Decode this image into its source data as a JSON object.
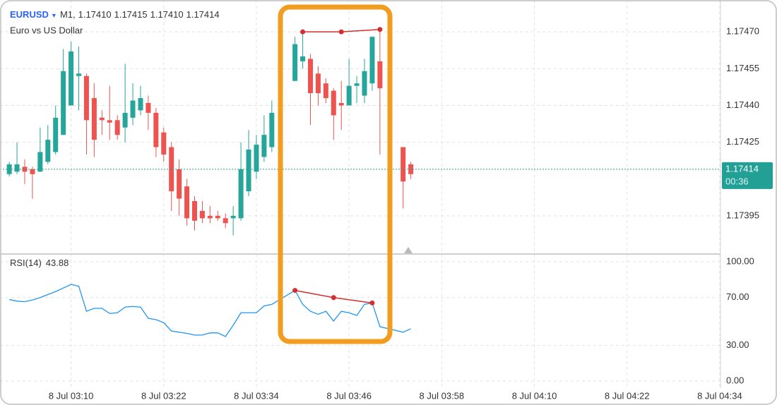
{
  "header": {
    "symbol": "EURUSD",
    "timeframe": "M1,",
    "ohlc": [
      "1.17410",
      "1.17415",
      "1.17410",
      "1.17414"
    ],
    "description": "Euro vs US Dollar"
  },
  "chart_data": [
    {
      "type": "candlestick",
      "x": [
        2,
        3,
        4,
        5,
        6,
        7,
        8,
        9,
        10,
        11,
        12,
        13,
        14,
        15,
        16,
        17,
        18,
        19,
        20,
        21,
        22,
        23,
        24,
        25,
        26,
        27,
        28,
        29,
        30,
        31,
        32,
        33,
        34,
        35,
        36,
        39,
        40,
        41,
        42,
        43,
        44,
        45,
        46,
        47,
        48,
        49,
        50,
        53,
        54
      ],
      "open": [
        1.17412,
        1.17413,
        1.17415,
        1.17414,
        1.17413,
        1.17417,
        1.17421,
        1.17428,
        1.1744,
        1.17452,
        1.17452,
        1.17443,
        1.17435,
        1.17434,
        1.17434,
        1.17431,
        1.17435,
        1.17438,
        1.17441,
        1.17437,
        1.17429,
        1.17423,
        1.17414,
        1.17407,
        1.17401,
        1.17397,
        1.17395,
        1.17395,
        1.17394,
        1.17394,
        1.17394,
        1.17405,
        1.17413,
        1.17419,
        1.17423,
        1.1745,
        1.17458,
        1.17459,
        1.17453,
        1.17449,
        1.17446,
        1.17441,
        1.1744,
        1.17448,
        1.17444,
        1.17449,
        1.17458,
        1.17423,
        1.17416
      ],
      "high": [
        1.17417,
        1.17425,
        1.17418,
        1.17415,
        1.17431,
        1.17432,
        1.1744,
        1.17463,
        1.17466,
        1.17464,
        1.17453,
        1.17449,
        1.17438,
        1.17448,
        1.17436,
        1.17457,
        1.17449,
        1.17448,
        1.17444,
        1.17439,
        1.17431,
        1.17425,
        1.17418,
        1.1741,
        1.17403,
        1.17401,
        1.17399,
        1.17397,
        1.17396,
        1.17399,
        1.17425,
        1.1743,
        1.17428,
        1.17436,
        1.17442,
        1.17468,
        1.1747,
        1.17461,
        1.17456,
        1.17451,
        1.17447,
        1.1745,
        1.17459,
        1.17452,
        1.17459,
        1.17468,
        1.1747,
        1.17423,
        1.17417
      ],
      "low": [
        1.17411,
        1.17412,
        1.17408,
        1.17402,
        1.17413,
        1.17416,
        1.1742,
        1.17428,
        1.1744,
        1.17438,
        1.1742,
        1.17419,
        1.17428,
        1.17426,
        1.17426,
        1.17425,
        1.17432,
        1.17436,
        1.1743,
        1.17419,
        1.17417,
        1.17397,
        1.17395,
        1.17391,
        1.17389,
        1.17392,
        1.17392,
        1.17393,
        1.1739,
        1.17387,
        1.17393,
        1.17403,
        1.1741,
        1.17417,
        1.17421,
        1.1745,
        1.17455,
        1.17432,
        1.1744,
        1.17441,
        1.17426,
        1.1743,
        1.1744,
        1.17441,
        1.17441,
        1.17446,
        1.1742,
        1.17398,
        1.1741
      ],
      "close": [
        1.17416,
        1.17416,
        1.17413,
        1.17412,
        1.17421,
        1.17426,
        1.17435,
        1.17454,
        1.17462,
        1.17453,
        1.17434,
        1.17426,
        1.17434,
        1.17433,
        1.17428,
        1.17437,
        1.17442,
        1.17443,
        1.17437,
        1.17423,
        1.1742,
        1.17405,
        1.17402,
        1.17394,
        1.17393,
        1.17394,
        1.17394,
        1.17394,
        1.17392,
        1.17395,
        1.17414,
        1.17422,
        1.17424,
        1.17428,
        1.17437,
        1.17465,
        1.1746,
        1.17445,
        1.17445,
        1.17443,
        1.17436,
        1.1744,
        1.17448,
        1.17449,
        1.17454,
        1.17468,
        1.17447,
        1.17409,
        1.17412
      ],
      "up_color": "#26a69a",
      "down_color": "#ef5350",
      "xlim": [
        0.8,
        94.1
      ],
      "xticks": [
        {
          "value": 10,
          "label": "8 Jul 03:10"
        },
        {
          "value": 22,
          "label": "8 Jul 03:22"
        },
        {
          "value": 34,
          "label": "8 Jul 03:34"
        },
        {
          "value": 46,
          "label": "8 Jul 03:46"
        },
        {
          "value": 58,
          "label": "8 Jul 03:58"
        },
        {
          "value": 70,
          "label": "8 Jul 04:10"
        },
        {
          "value": 82,
          "label": "8 Jul 04:22"
        },
        {
          "value": 94,
          "label": "8 Jul 04:34"
        }
      ],
      "ylim": [
        1.1738,
        1.17483
      ],
      "yticks": [
        {
          "value": 1.17395,
          "label": "1.17395"
        },
        {
          "value": 1.17425,
          "label": "1.17425"
        },
        {
          "value": 1.1744,
          "label": "1.17440"
        },
        {
          "value": 1.17455,
          "label": "1.17455"
        },
        {
          "value": 1.1747,
          "label": "1.17470"
        }
      ],
      "grid": true,
      "last_price": {
        "value": 1.17414,
        "label": "1.17414"
      },
      "last_price_color": "#22a095",
      "countdown": "00:36",
      "annotation": {
        "x": [
          40,
          45,
          50
        ],
        "values": [
          1.1747,
          1.1747,
          1.17471
        ],
        "color": "#d32f2f"
      }
    },
    {
      "type": "line",
      "title": "RSI(14)",
      "x": [
        2,
        3,
        4,
        5,
        6,
        7,
        8,
        9,
        10,
        11,
        12,
        13,
        14,
        15,
        16,
        17,
        18,
        19,
        20,
        21,
        22,
        23,
        24,
        25,
        26,
        27,
        28,
        29,
        30,
        31,
        32,
        33,
        34,
        35,
        36,
        39,
        40,
        41,
        42,
        43,
        44,
        45,
        46,
        47,
        48,
        49,
        50,
        53,
        54
      ],
      "values": [
        68.4,
        67,
        66.5,
        68,
        70,
        72.5,
        75,
        78,
        81,
        79.5,
        58.5,
        61,
        61,
        56.7,
        57.3,
        62,
        62.6,
        62,
        52.6,
        51.5,
        49,
        42,
        41,
        40,
        38.6,
        38.6,
        40.4,
        40.4,
        37.4,
        46.8,
        57.3,
        57.3,
        57.3,
        63,
        64.3,
        76,
        64.3,
        58.5,
        56,
        58.5,
        50.3,
        58.5,
        57.3,
        55,
        64.3,
        65.5,
        45.6,
        41,
        43.88
      ],
      "color": "#2196f3",
      "ylim": [
        -5.8,
        105.3
      ],
      "yticks": [
        {
          "value": 0,
          "label": "0.00"
        },
        {
          "value": 30,
          "label": "30.00"
        },
        {
          "value": 70,
          "label": "70.00"
        },
        {
          "value": 100,
          "label": "100.00"
        }
      ],
      "grid": true,
      "annotation": {
        "x": [
          39,
          44,
          49
        ],
        "values": [
          76,
          70,
          65.5
        ],
        "color": "#d32f2f"
      }
    }
  ]
}
